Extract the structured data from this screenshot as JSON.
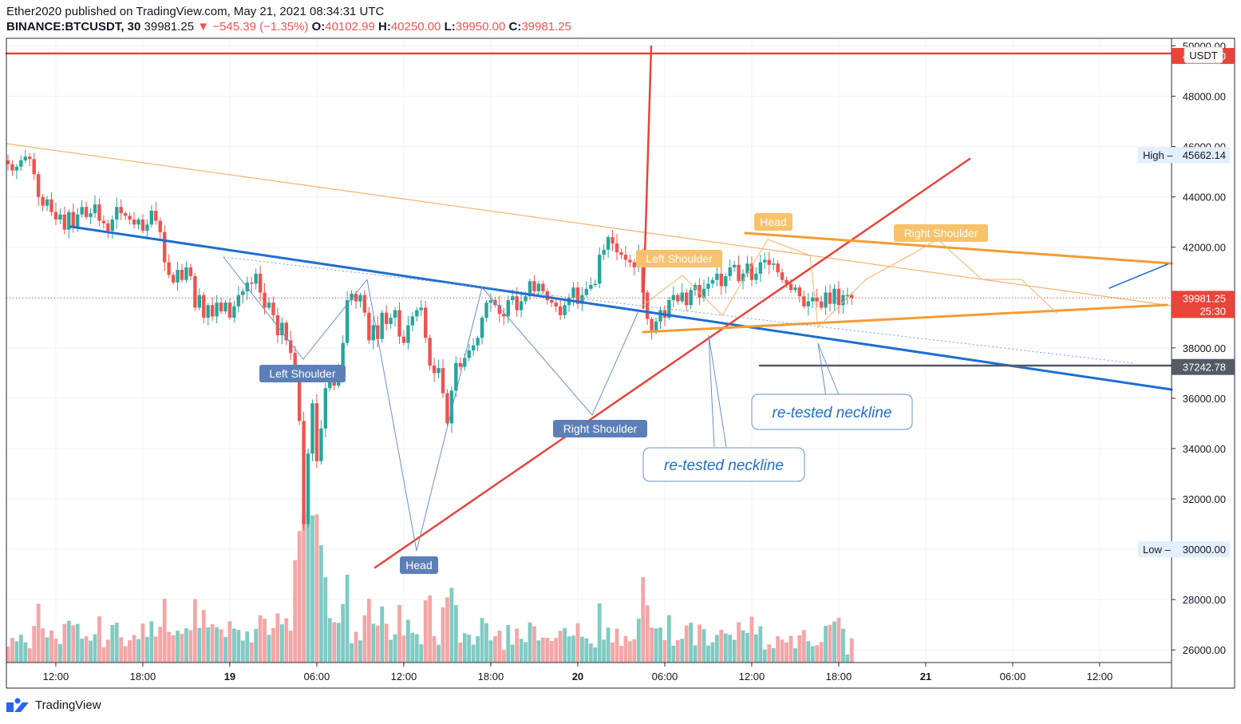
{
  "header": {
    "published": "Ether2020 published on TradingView.com, May 21, 2021 08:34:31 UTC",
    "symbol": "BINANCE:BTCUSDT, 30",
    "last": "39981.25",
    "change": "−545.39 (−1.35%)",
    "o_label": "O:",
    "o_value": "40102.99",
    "h_label": "H:",
    "h_value": "40250.00",
    "l_label": "L:",
    "l_value": "39950.00",
    "c_label": "C:",
    "c_value": "39981.25"
  },
  "footer": {
    "brand": "TradingView"
  },
  "colors": {
    "up": "#26a69a",
    "down": "#ef5350",
    "vol_up": "#80cbc4",
    "vol_down": "#f4a6a6",
    "blue_trend": "#1e6fd0",
    "red_trend": "#e8443a",
    "orange": "#f39c34",
    "label_orange": "#f7c26b",
    "label_blue": "#5c7fb8"
  },
  "chart_data": {
    "type": "candlestick",
    "title": "",
    "ylim": [
      25500,
      50300
    ],
    "y_ticks": [
      26000,
      28000,
      30000,
      32000,
      34000,
      36000,
      38000,
      40000,
      42000,
      44000,
      46000,
      48000,
      50000
    ],
    "y_tick_labels": [
      "26000.00",
      "28000.00",
      "30000.00",
      "32000.00",
      "34000.00",
      "36000.00",
      "38000.00",
      "40000.00",
      "42000.00",
      "44000.00",
      "46000.00",
      "48000.00",
      "50000.00"
    ],
    "x_tick_labels": [
      "12:00",
      "18:00",
      "19",
      "06:00",
      "12:00",
      "18:00",
      "20",
      "06:00",
      "12:00",
      "18:00",
      "21",
      "06:00",
      "12:00"
    ],
    "currency": "USDT",
    "price_labels": {
      "last": "39981.25",
      "countdown": "25:30",
      "high_label": "High",
      "high_value": "45662.14",
      "low_label": "Low",
      "low_value": "30000.00",
      "level_value": "37242.78"
    },
    "key_levels": {
      "top_red_line": 49600,
      "gray_line": 37242.78
    },
    "closes": [
      45300,
      45050,
      45200,
      45450,
      45600,
      45500,
      44900,
      44000,
      43650,
      43900,
      43400,
      43100,
      43300,
      42700,
      43400,
      42800,
      43300,
      43600,
      43200,
      43350,
      43700,
      43050,
      42950,
      42650,
      43100,
      43600,
      43350,
      43250,
      43100,
      42900,
      43100,
      42650,
      42900,
      43450,
      43050,
      42600,
      41400,
      40900,
      40600,
      41100,
      40700,
      41200,
      40850,
      39600,
      40100,
      39200,
      39700,
      39250,
      39800,
      39450,
      39800,
      39200,
      39650,
      40100,
      40250,
      40600,
      40550,
      40950,
      40200,
      39600,
      39800,
      39300,
      38500,
      39000,
      38300,
      37800,
      36800,
      35100,
      31000,
      33800,
      35800,
      33500,
      34800,
      36400,
      37100,
      36500,
      37200,
      38200,
      39900,
      40150,
      39850,
      40100,
      39400,
      38300,
      38900,
      38350,
      39400,
      38950,
      39200,
      39500,
      38450,
      38200,
      38900,
      39250,
      39500,
      39600,
      38400,
      37300,
      37000,
      37200,
      36200,
      35000,
      36300,
      37400,
      37250,
      37600,
      37900,
      38100,
      38400,
      39200,
      39800,
      39900,
      39700,
      39350,
      39250,
      39900,
      40050,
      39500,
      39850,
      40050,
      40650,
      40250,
      40550,
      40250,
      39900,
      39800,
      39650,
      39300,
      39700,
      40000,
      40400,
      39750,
      40100,
      40350,
      40500,
      40550,
      41700,
      41900,
      42400,
      42150,
      41800,
      41700,
      41500,
      41400,
      41200,
      41850,
      40200,
      39150,
      38700,
      39050,
      39500,
      39200,
      39900,
      40100,
      39850,
      40200,
      39700,
      40300,
      40500,
      40000,
      40350,
      40550,
      40700,
      40950,
      40450,
      40850,
      41200,
      41300,
      40650,
      40950,
      41350,
      40700,
      40950,
      41400,
      41500,
      41300,
      41350,
      41000,
      40700,
      40550,
      40300,
      40400,
      40050,
      39650,
      39850,
      40000,
      39850,
      39600,
      40200,
      39750,
      40350,
      39700,
      40100,
      40100,
      39981
    ]
  }
}
